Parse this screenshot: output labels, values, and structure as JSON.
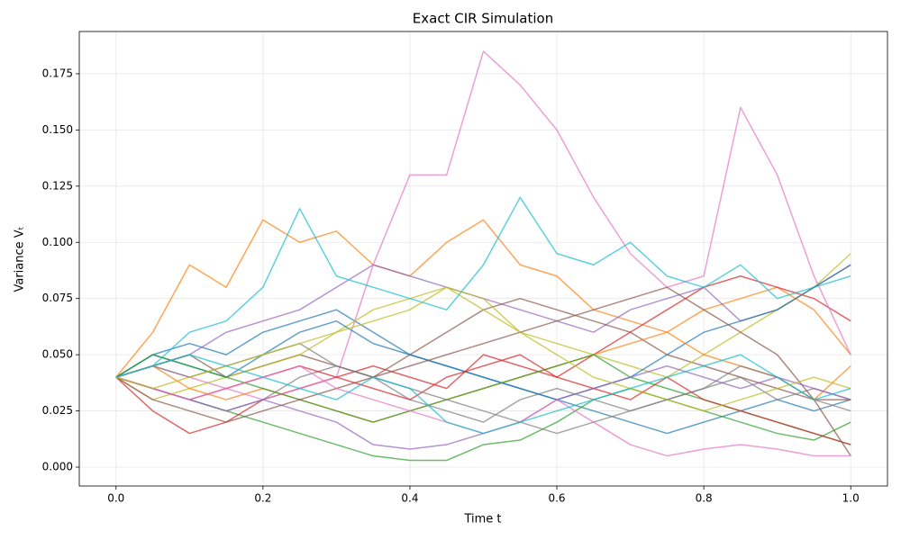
{
  "chart_data": {
    "type": "line",
    "title": "Exact CIR Simulation",
    "x_label": "Time t",
    "y_label": "Variance Vₜ",
    "xlim": [
      -0.05,
      1.05
    ],
    "ylim": [
      -0.0084,
      0.1938
    ],
    "xticks": [
      {
        "value": 0,
        "label": "0.0"
      },
      0.2,
      0.4,
      0.6,
      0.8,
      {
        "value": 1,
        "label": "1.0"
      }
    ],
    "yticks": [
      {
        "value": 0,
        "label": "0.000"
      },
      {
        "value": 0.025,
        "label": "0.025"
      },
      {
        "value": 0.05,
        "label": "0.050"
      },
      {
        "value": 0.075,
        "label": "0.075"
      },
      {
        "value": 0.1,
        "label": "0.100"
      },
      {
        "value": 0.125,
        "label": "0.125"
      },
      {
        "value": 0.15,
        "label": "0.150"
      },
      {
        "value": 0.175,
        "label": "0.175"
      }
    ],
    "grid": true,
    "x": [
      0,
      0.05,
      0.1,
      0.15,
      0.2,
      0.25,
      0.3,
      0.35,
      0.4,
      0.45,
      0.5,
      0.55,
      0.6,
      0.65,
      0.7,
      0.75,
      0.8,
      0.85,
      0.9,
      0.95,
      1.0
    ],
    "series": [
      {
        "color": "#1f77b4",
        "values": [
          0.04,
          0.05,
          0.055,
          0.05,
          0.06,
          0.065,
          0.07,
          0.06,
          0.05,
          0.045,
          0.04,
          0.035,
          0.03,
          0.025,
          0.02,
          0.015,
          0.02,
          0.025,
          0.03,
          0.025,
          0.03
        ]
      },
      {
        "color": "#ff7f0e",
        "values": [
          0.04,
          0.06,
          0.09,
          0.08,
          0.11,
          0.1,
          0.105,
          0.09,
          0.085,
          0.1,
          0.11,
          0.09,
          0.085,
          0.07,
          0.065,
          0.06,
          0.07,
          0.075,
          0.08,
          0.07,
          0.05
        ]
      },
      {
        "color": "#2ca02c",
        "values": [
          0.04,
          0.035,
          0.03,
          0.025,
          0.02,
          0.015,
          0.01,
          0.005,
          0.003,
          0.003,
          0.01,
          0.012,
          0.02,
          0.03,
          0.035,
          0.03,
          0.025,
          0.02,
          0.015,
          0.012,
          0.02
        ]
      },
      {
        "color": "#d62728",
        "values": [
          0.04,
          0.025,
          0.015,
          0.02,
          0.03,
          0.035,
          0.04,
          0.045,
          0.04,
          0.035,
          0.05,
          0.045,
          0.04,
          0.05,
          0.06,
          0.07,
          0.08,
          0.085,
          0.08,
          0.075,
          0.065
        ]
      },
      {
        "color": "#9467bd",
        "values": [
          0.04,
          0.045,
          0.05,
          0.06,
          0.065,
          0.07,
          0.08,
          0.09,
          0.085,
          0.08,
          0.075,
          0.07,
          0.065,
          0.06,
          0.07,
          0.075,
          0.08,
          0.065,
          0.07,
          0.08,
          0.09
        ]
      },
      {
        "color": "#8c564b",
        "values": [
          0.04,
          0.045,
          0.05,
          0.04,
          0.045,
          0.05,
          0.045,
          0.04,
          0.05,
          0.06,
          0.07,
          0.075,
          0.07,
          0.065,
          0.06,
          0.05,
          0.045,
          0.04,
          0.035,
          0.03,
          0.03
        ]
      },
      {
        "color": "#e377c2",
        "values": [
          0.04,
          0.045,
          0.04,
          0.035,
          0.03,
          0.035,
          0.04,
          0.09,
          0.13,
          0.13,
          0.185,
          0.17,
          0.15,
          0.12,
          0.095,
          0.08,
          0.085,
          0.16,
          0.13,
          0.085,
          0.05
        ]
      },
      {
        "color": "#7f7f7f",
        "values": [
          0.04,
          0.035,
          0.03,
          0.025,
          0.03,
          0.04,
          0.045,
          0.04,
          0.03,
          0.025,
          0.02,
          0.03,
          0.035,
          0.03,
          0.025,
          0.03,
          0.035,
          0.04,
          0.03,
          0.035,
          0.03
        ]
      },
      {
        "color": "#bcbd22",
        "values": [
          0.04,
          0.03,
          0.035,
          0.04,
          0.045,
          0.05,
          0.06,
          0.07,
          0.075,
          0.08,
          0.07,
          0.06,
          0.055,
          0.05,
          0.045,
          0.04,
          0.05,
          0.06,
          0.07,
          0.08,
          0.095
        ]
      },
      {
        "color": "#17becf",
        "values": [
          0.04,
          0.045,
          0.06,
          0.065,
          0.08,
          0.115,
          0.085,
          0.08,
          0.075,
          0.07,
          0.09,
          0.12,
          0.095,
          0.09,
          0.1,
          0.085,
          0.08,
          0.09,
          0.075,
          0.08,
          0.085
        ]
      },
      {
        "color": "#1f77b4",
        "values": [
          0.04,
          0.05,
          0.045,
          0.04,
          0.05,
          0.06,
          0.065,
          0.055,
          0.05,
          0.045,
          0.04,
          0.035,
          0.03,
          0.035,
          0.04,
          0.05,
          0.06,
          0.065,
          0.07,
          0.08,
          0.09
        ]
      },
      {
        "color": "#ff7f0e",
        "values": [
          0.04,
          0.045,
          0.035,
          0.03,
          0.035,
          0.03,
          0.025,
          0.02,
          0.025,
          0.03,
          0.035,
          0.04,
          0.045,
          0.05,
          0.055,
          0.06,
          0.05,
          0.045,
          0.04,
          0.03,
          0.045
        ]
      },
      {
        "color": "#2ca02c",
        "values": [
          0.04,
          0.05,
          0.045,
          0.04,
          0.035,
          0.03,
          0.025,
          0.02,
          0.025,
          0.03,
          0.035,
          0.04,
          0.045,
          0.05,
          0.04,
          0.035,
          0.03,
          0.025,
          0.02,
          0.015,
          0.01
        ]
      },
      {
        "color": "#d62728",
        "values": [
          0.04,
          0.035,
          0.03,
          0.035,
          0.04,
          0.045,
          0.04,
          0.035,
          0.03,
          0.04,
          0.045,
          0.05,
          0.04,
          0.035,
          0.03,
          0.04,
          0.03,
          0.025,
          0.02,
          0.015,
          0.01
        ]
      },
      {
        "color": "#9467bd",
        "values": [
          0.04,
          0.035,
          0.03,
          0.025,
          0.03,
          0.025,
          0.02,
          0.01,
          0.008,
          0.01,
          0.015,
          0.02,
          0.03,
          0.035,
          0.04,
          0.045,
          0.04,
          0.035,
          0.04,
          0.035,
          0.03
        ]
      },
      {
        "color": "#8c564b",
        "values": [
          0.04,
          0.03,
          0.025,
          0.02,
          0.025,
          0.03,
          0.035,
          0.04,
          0.045,
          0.05,
          0.055,
          0.06,
          0.065,
          0.07,
          0.075,
          0.08,
          0.07,
          0.06,
          0.05,
          0.03,
          0.005
        ]
      },
      {
        "color": "#e377c2",
        "values": [
          0.04,
          0.035,
          0.03,
          0.035,
          0.04,
          0.045,
          0.035,
          0.03,
          0.025,
          0.02,
          0.015,
          0.02,
          0.03,
          0.02,
          0.01,
          0.005,
          0.008,
          0.01,
          0.008,
          0.005,
          0.005
        ]
      },
      {
        "color": "#7f7f7f",
        "values": [
          0.04,
          0.045,
          0.04,
          0.045,
          0.05,
          0.055,
          0.045,
          0.04,
          0.035,
          0.03,
          0.025,
          0.02,
          0.015,
          0.02,
          0.025,
          0.03,
          0.035,
          0.045,
          0.04,
          0.03,
          0.025
        ]
      },
      {
        "color": "#bcbd22",
        "values": [
          0.04,
          0.035,
          0.04,
          0.045,
          0.05,
          0.055,
          0.06,
          0.065,
          0.07,
          0.08,
          0.075,
          0.06,
          0.05,
          0.04,
          0.035,
          0.03,
          0.025,
          0.03,
          0.035,
          0.04,
          0.035
        ]
      },
      {
        "color": "#17becf",
        "values": [
          0.04,
          0.045,
          0.05,
          0.045,
          0.04,
          0.035,
          0.03,
          0.04,
          0.035,
          0.02,
          0.015,
          0.02,
          0.025,
          0.03,
          0.035,
          0.04,
          0.045,
          0.05,
          0.04,
          0.03,
          0.035
        ]
      }
    ]
  }
}
